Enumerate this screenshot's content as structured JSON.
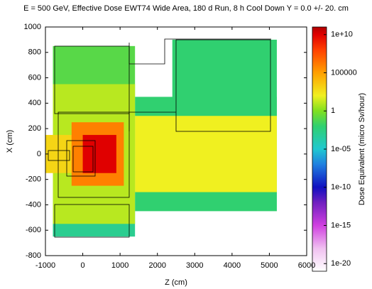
{
  "chart_data": {
    "type": "heatmap",
    "title": "E = 500 GeV, Effective Dose EWT74 Wide Area, 180 d Run, 8 h Cool Down Y = 0.0 +/- 20. cm",
    "x_label": "Z (cm)",
    "y_label": "X (cm)",
    "colorbar_label": "Dose Equivalent (micro Sv/hour)",
    "xlim": [
      -1000,
      6000
    ],
    "xticks": [
      -1000,
      0,
      1000,
      2000,
      3000,
      4000,
      5000,
      6000
    ],
    "ylim": [
      -800,
      1000
    ],
    "yticks": [
      -800,
      -600,
      -400,
      -200,
      0,
      200,
      400,
      600,
      800,
      1000
    ],
    "zlim": [
      1e-21,
      100000000000.0
    ],
    "log_color": true,
    "zticks": [
      {
        "value": 10000000000.0,
        "label": "1e+10"
      },
      100000,
      1,
      {
        "value": 1e-05,
        "label": "1e-05"
      },
      {
        "value": 1e-10,
        "label": "1e-10"
      },
      {
        "value": 1e-15,
        "label": "1e-15"
      },
      {
        "value": 1e-20,
        "label": "1e-20"
      }
    ],
    "colormap": [
      {
        "value": 1e-21,
        "color": "#ffffff"
      },
      {
        "value": 1e-18,
        "color": "#f0c0f0"
      },
      {
        "value": 1e-15,
        "color": "#d040e0"
      },
      {
        "value": 1e-12,
        "color": "#7020c0"
      },
      {
        "value": 1e-10,
        "color": "#1010c0"
      },
      {
        "value": 1e-07,
        "color": "#2080e0"
      },
      {
        "value": 1e-05,
        "color": "#20c8d0"
      },
      {
        "value": 0.01,
        "color": "#30d070"
      },
      {
        "value": 1,
        "color": "#80e020"
      },
      {
        "value": 100,
        "color": "#f0f020"
      },
      {
        "value": 100000,
        "color": "#ffa000"
      },
      {
        "value": 100000000.0,
        "color": "#ff4000"
      },
      {
        "value": 10000000000.0,
        "color": "#e00000"
      },
      {
        "value": 100000000000.0,
        "color": "#b00000"
      }
    ],
    "cells": [
      {
        "z": [
          -800,
          1400
        ],
        "x": [
          300,
          850
        ],
        "value": 0.1
      },
      {
        "z": [
          -800,
          1400
        ],
        "x": [
          -650,
          -300
        ],
        "value": 0.001
      },
      {
        "z": [
          2400,
          5200
        ],
        "x": [
          150,
          900
        ],
        "value": 0.01
      },
      {
        "z": [
          1400,
          5200
        ],
        "x": [
          -450,
          450
        ],
        "value": 0.01
      },
      {
        "z": [
          -800,
          1400
        ],
        "x": [
          -550,
          550
        ],
        "value": 10
      },
      {
        "z": [
          1400,
          5200
        ],
        "x": [
          -300,
          300
        ],
        "value": 100
      },
      {
        "z": [
          -1000,
          0
        ],
        "x": [
          -150,
          150
        ],
        "value": 1000
      },
      {
        "z": [
          -300,
          1100
        ],
        "x": [
          -250,
          250
        ],
        "value": 1000000
      },
      {
        "z": [
          0,
          900
        ],
        "x": [
          -150,
          150
        ],
        "value": 10000000000
      }
    ]
  }
}
